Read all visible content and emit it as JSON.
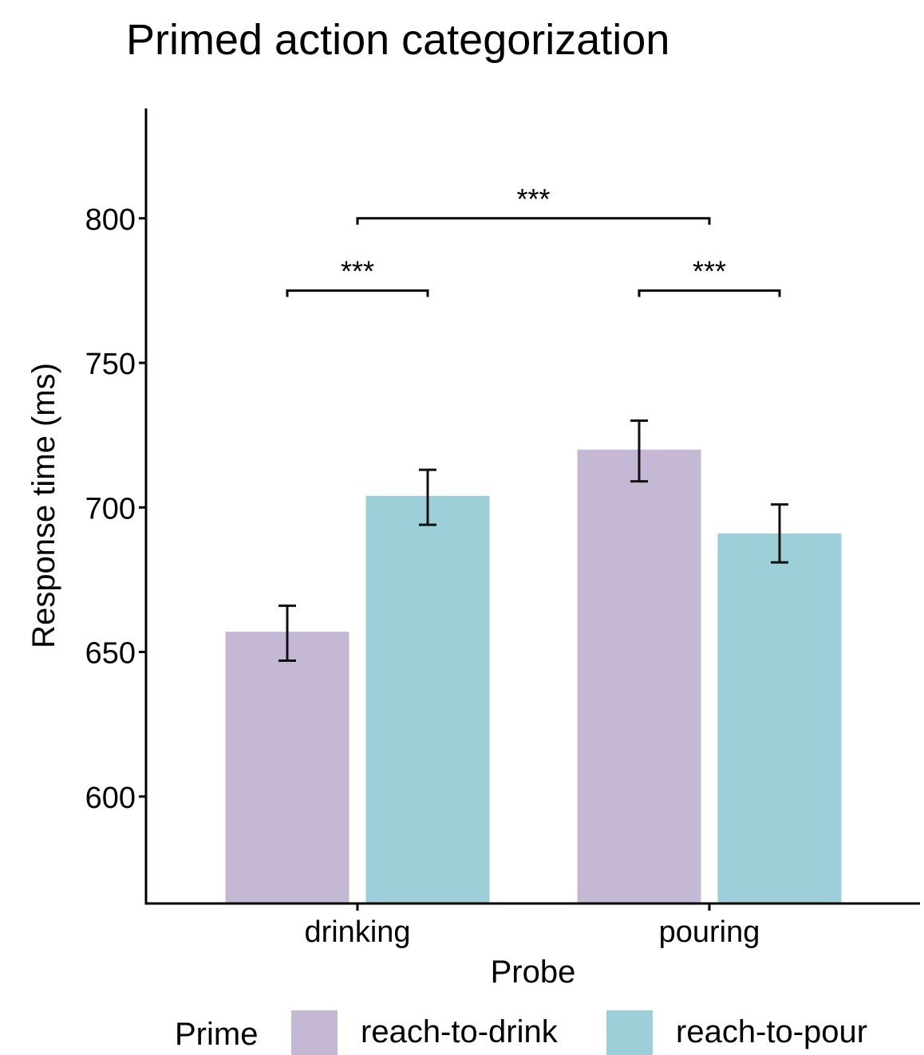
{
  "chart_data": {
    "type": "bar",
    "title": "Primed action categorization",
    "xlabel": "Probe",
    "ylabel": "Response time (ms)",
    "categories": [
      "drinking",
      "pouring"
    ],
    "series": [
      {
        "name": "reach-to-drink",
        "color": "#c5b8d4",
        "values": [
          657,
          720
        ],
        "error": [
          [
            647,
            666
          ],
          [
            709,
            730
          ]
        ]
      },
      {
        "name": "reach-to-pour",
        "color": "#9dcfd9",
        "values": [
          704,
          691
        ],
        "error": [
          [
            694,
            713
          ],
          [
            681,
            701
          ]
        ]
      }
    ],
    "ylim": [
      563,
      838
    ],
    "yticks": [
      600,
      650,
      700,
      750,
      800
    ],
    "legend": {
      "title": "Prime",
      "position": "bottom"
    },
    "grid": false,
    "significance": [
      {
        "label": "***",
        "from": {
          "category": "drinking",
          "series": "reach-to-drink"
        },
        "to": {
          "category": "drinking",
          "series": "reach-to-pour"
        },
        "level": 775
      },
      {
        "label": "***",
        "from": {
          "category": "pouring",
          "series": "reach-to-drink"
        },
        "to": {
          "category": "pouring",
          "series": "reach-to-pour"
        },
        "level": 775
      },
      {
        "label": "***",
        "from": {
          "category": "drinking"
        },
        "to": {
          "category": "pouring"
        },
        "level": 800
      }
    ]
  }
}
